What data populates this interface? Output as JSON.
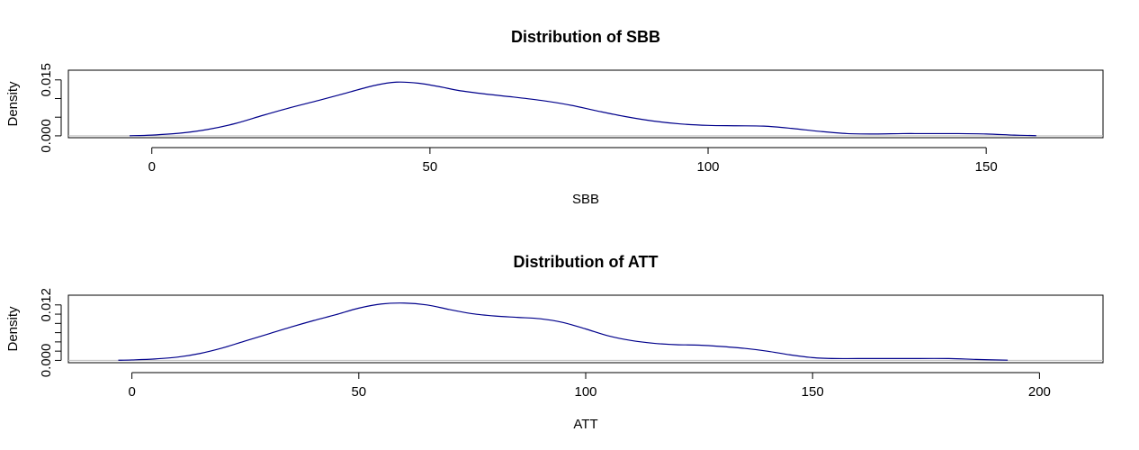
{
  "chart_data": [
    {
      "type": "line",
      "title": "Distribution of SBB",
      "xlabel": "SBB",
      "ylabel": "Density",
      "xlim": [
        -15,
        171
      ],
      "ylim": [
        -0.0005,
        0.0176
      ],
      "x_ticks": [
        0,
        50,
        100,
        150
      ],
      "y_tick_values": [
        0,
        0.005,
        0.01,
        0.015
      ],
      "y_tick_labels": [
        "0.000",
        "",
        "",
        "0.015"
      ],
      "grid": false,
      "legend": "none",
      "series": [
        {
          "color": "#00008b",
          "x": [
            -4,
            0,
            5,
            10,
            15,
            20,
            25,
            30,
            35,
            40,
            44,
            48,
            52,
            55,
            60,
            65,
            70,
            75,
            80,
            85,
            90,
            95,
            100,
            105,
            110,
            115,
            120,
            125,
            130,
            135,
            140,
            145,
            150,
            155,
            159
          ],
          "y": [
            3e-05,
            0.0002,
            0.0007,
            0.0017,
            0.0033,
            0.0055,
            0.0076,
            0.0095,
            0.0115,
            0.0135,
            0.0144,
            0.0141,
            0.0131,
            0.0122,
            0.0112,
            0.0104,
            0.0095,
            0.0083,
            0.0067,
            0.0052,
            0.004,
            0.0032,
            0.0028,
            0.0027,
            0.0026,
            0.002,
            0.0012,
            0.0006,
            0.0005,
            0.0006,
            0.0006,
            0.0006,
            0.0005,
            0.0002,
            5e-05
          ]
        }
      ]
    },
    {
      "type": "line",
      "title": "Distribution of ATT",
      "xlabel": "ATT",
      "ylabel": "Density",
      "xlim": [
        -14,
        214
      ],
      "ylim": [
        -0.0005,
        0.0141
      ],
      "x_ticks": [
        0,
        50,
        100,
        150,
        200
      ],
      "y_tick_values": [
        0,
        0.002,
        0.004,
        0.006,
        0.008,
        0.01,
        0.012
      ],
      "y_tick_labels": [
        "0.000",
        "",
        "",
        "",
        "",
        "",
        "0.012"
      ],
      "grid": false,
      "legend": "none",
      "series": [
        {
          "color": "#00008b",
          "x": [
            -3,
            0,
            5,
            10,
            15,
            20,
            25,
            30,
            35,
            40,
            45,
            50,
            55,
            60,
            65,
            70,
            75,
            80,
            85,
            90,
            95,
            100,
            105,
            110,
            115,
            120,
            125,
            130,
            135,
            140,
            145,
            150,
            155,
            160,
            170,
            180,
            186,
            193
          ],
          "y": [
            3e-05,
            0.0001,
            0.0003,
            0.0007,
            0.0015,
            0.0027,
            0.0042,
            0.0057,
            0.0072,
            0.0086,
            0.0099,
            0.0113,
            0.0122,
            0.0124,
            0.012,
            0.011,
            0.0101,
            0.0096,
            0.0093,
            0.009,
            0.0082,
            0.0068,
            0.0053,
            0.0043,
            0.0037,
            0.0034,
            0.0033,
            0.003,
            0.0026,
            0.002,
            0.0012,
            0.0006,
            0.0004,
            0.0004,
            0.0004,
            0.0004,
            0.0002,
            5e-05
          ]
        }
      ]
    }
  ]
}
